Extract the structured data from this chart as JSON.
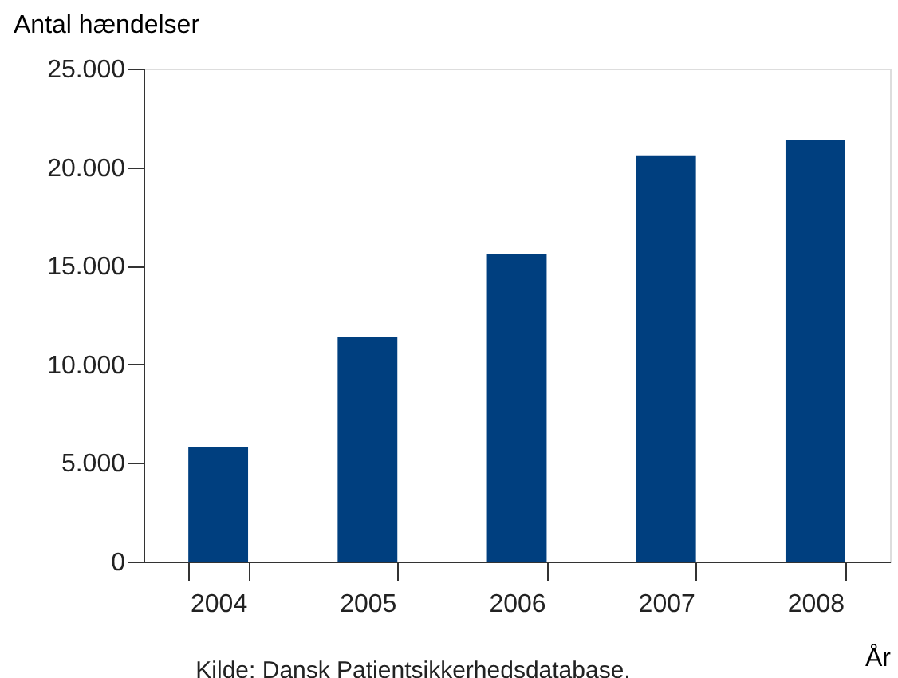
{
  "chart_data": {
    "type": "bar",
    "categories": [
      "2004",
      "2005",
      "2006",
      "2007",
      "2008"
    ],
    "values": [
      5800,
      11400,
      15600,
      20600,
      21400
    ],
    "color": "#003f7f",
    "ylabel": "Antal hændelser",
    "xlabel": "År",
    "ylim": [
      0,
      25000
    ],
    "yticks": [
      0,
      {
        "value": 5000,
        "label": "5.000"
      },
      {
        "value": 10000,
        "label": "10.000"
      },
      {
        "value": 15000,
        "label": "15.000"
      },
      {
        "value": 20000,
        "label": "20.000"
      },
      {
        "value": 25000,
        "label": "25.000"
      }
    ],
    "grid": false,
    "annotations": [
      "Kilde: Dansk Patientsikkerhedsdatabase."
    ]
  }
}
